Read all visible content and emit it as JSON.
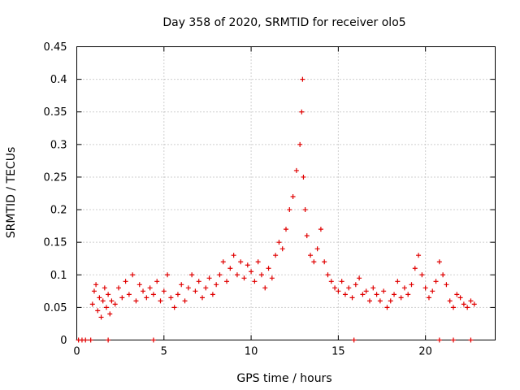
{
  "chart_data": {
    "type": "scatter",
    "title": "Day 358 of 2020, SRMTID for receiver olo5",
    "xlabel": "GPS time / hours",
    "ylabel": "SRMTID / TECUs",
    "xlim": [
      0,
      24
    ],
    "ylim": [
      0,
      0.45
    ],
    "x_ticks": [
      0,
      5,
      10,
      15,
      20
    ],
    "x_tick_labels": [
      "0",
      "5",
      "10",
      "15",
      "20"
    ],
    "y_ticks": [
      0,
      0.05,
      0.1,
      0.15,
      0.2,
      0.25,
      0.3,
      0.35,
      0.4,
      0.45
    ],
    "y_tick_labels": [
      "0",
      "0.05",
      "0.1",
      "0.15",
      "0.2",
      "0.25",
      "0.3",
      "0.35",
      "0.4",
      "0.45"
    ],
    "grid": true,
    "marker": "plus",
    "color": "#e00000",
    "series": [
      {
        "name": "SRMTID",
        "points": [
          [
            0.1,
            0
          ],
          [
            0.3,
            0
          ],
          [
            0.5,
            0
          ],
          [
            0.8,
            0
          ],
          [
            1.8,
            0
          ],
          [
            4.4,
            0
          ],
          [
            15.9,
            0
          ],
          [
            20.8,
            0
          ],
          [
            21.6,
            0
          ],
          [
            22.6,
            0
          ],
          [
            0.9,
            0.055
          ],
          [
            1.0,
            0.075
          ],
          [
            1.1,
            0.085
          ],
          [
            1.2,
            0.045
          ],
          [
            1.3,
            0.065
          ],
          [
            1.4,
            0.035
          ],
          [
            1.5,
            0.06
          ],
          [
            1.6,
            0.08
          ],
          [
            1.7,
            0.05
          ],
          [
            1.8,
            0.07
          ],
          [
            1.9,
            0.04
          ],
          [
            2.0,
            0.06
          ],
          [
            2.2,
            0.055
          ],
          [
            2.4,
            0.08
          ],
          [
            2.6,
            0.065
          ],
          [
            2.8,
            0.09
          ],
          [
            3.0,
            0.07
          ],
          [
            3.2,
            0.1
          ],
          [
            3.4,
            0.06
          ],
          [
            3.6,
            0.085
          ],
          [
            3.8,
            0.075
          ],
          [
            4.0,
            0.065
          ],
          [
            4.2,
            0.08
          ],
          [
            4.4,
            0.07
          ],
          [
            4.6,
            0.09
          ],
          [
            4.8,
            0.06
          ],
          [
            5.0,
            0.075
          ],
          [
            5.2,
            0.1
          ],
          [
            5.4,
            0.065
          ],
          [
            5.6,
            0.05
          ],
          [
            5.8,
            0.07
          ],
          [
            6.0,
            0.085
          ],
          [
            6.2,
            0.06
          ],
          [
            6.4,
            0.08
          ],
          [
            6.6,
            0.1
          ],
          [
            6.8,
            0.075
          ],
          [
            7.0,
            0.09
          ],
          [
            7.2,
            0.065
          ],
          [
            7.4,
            0.08
          ],
          [
            7.6,
            0.095
          ],
          [
            7.8,
            0.07
          ],
          [
            8.0,
            0.085
          ],
          [
            8.2,
            0.1
          ],
          [
            8.4,
            0.12
          ],
          [
            8.6,
            0.09
          ],
          [
            8.8,
            0.11
          ],
          [
            9.0,
            0.13
          ],
          [
            9.2,
            0.1
          ],
          [
            9.4,
            0.12
          ],
          [
            9.6,
            0.095
          ],
          [
            9.8,
            0.115
          ],
          [
            10.0,
            0.105
          ],
          [
            10.2,
            0.09
          ],
          [
            10.4,
            0.12
          ],
          [
            10.6,
            0.1
          ],
          [
            10.8,
            0.08
          ],
          [
            11.0,
            0.11
          ],
          [
            11.2,
            0.095
          ],
          [
            11.4,
            0.13
          ],
          [
            11.6,
            0.15
          ],
          [
            11.8,
            0.14
          ],
          [
            12.0,
            0.17
          ],
          [
            12.2,
            0.2
          ],
          [
            12.4,
            0.22
          ],
          [
            12.6,
            0.26
          ],
          [
            12.8,
            0.3
          ],
          [
            12.9,
            0.35
          ],
          [
            12.95,
            0.4
          ],
          [
            13.0,
            0.25
          ],
          [
            13.1,
            0.2
          ],
          [
            13.2,
            0.16
          ],
          [
            13.4,
            0.13
          ],
          [
            13.6,
            0.12
          ],
          [
            13.8,
            0.14
          ],
          [
            14.0,
            0.17
          ],
          [
            14.2,
            0.12
          ],
          [
            14.4,
            0.1
          ],
          [
            14.6,
            0.09
          ],
          [
            14.8,
            0.08
          ],
          [
            15.0,
            0.075
          ],
          [
            15.2,
            0.09
          ],
          [
            15.4,
            0.07
          ],
          [
            15.6,
            0.08
          ],
          [
            15.8,
            0.065
          ],
          [
            16.0,
            0.085
          ],
          [
            16.2,
            0.095
          ],
          [
            16.4,
            0.07
          ],
          [
            16.6,
            0.075
          ],
          [
            16.8,
            0.06
          ],
          [
            17.0,
            0.08
          ],
          [
            17.2,
            0.07
          ],
          [
            17.4,
            0.06
          ],
          [
            17.6,
            0.075
          ],
          [
            17.8,
            0.05
          ],
          [
            18.0,
            0.06
          ],
          [
            18.2,
            0.07
          ],
          [
            18.4,
            0.09
          ],
          [
            18.6,
            0.065
          ],
          [
            18.8,
            0.08
          ],
          [
            19.0,
            0.07
          ],
          [
            19.2,
            0.085
          ],
          [
            19.4,
            0.11
          ],
          [
            19.6,
            0.13
          ],
          [
            19.8,
            0.1
          ],
          [
            20.0,
            0.08
          ],
          [
            20.2,
            0.065
          ],
          [
            20.4,
            0.075
          ],
          [
            20.6,
            0.09
          ],
          [
            20.8,
            0.12
          ],
          [
            21.0,
            0.1
          ],
          [
            21.2,
            0.085
          ],
          [
            21.4,
            0.06
          ],
          [
            21.6,
            0.05
          ],
          [
            21.8,
            0.07
          ],
          [
            22.0,
            0.065
          ],
          [
            22.2,
            0.055
          ],
          [
            22.4,
            0.05
          ],
          [
            22.6,
            0.06
          ],
          [
            22.8,
            0.055
          ]
        ]
      }
    ]
  }
}
